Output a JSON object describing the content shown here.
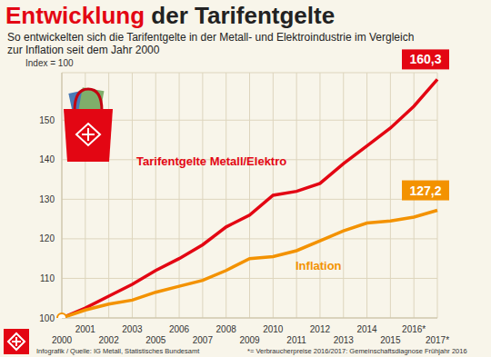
{
  "chart_data": {
    "type": "line",
    "title": "Entwicklung der Tarifentgelte",
    "subtitle": "So entwickelten sich die Tarifentgelte in der Metall- und Elektroindustrie im Vergleich zur Inflation seit dem Jahr 2000",
    "y_label": "Index = 100",
    "categories": [
      "2000",
      "2001",
      "2002",
      "2003",
      "2005",
      "2006",
      "2007",
      "2008",
      "2009",
      "2010",
      "2011",
      "2012",
      "2013",
      "2014",
      "2015",
      "2016*",
      "2017*"
    ],
    "series": [
      {
        "name": "Tarifentgelte Metall/Elektro",
        "color": "#e30613",
        "values": [
          100,
          102.5,
          105.5,
          108.5,
          112,
          115,
          118.5,
          123,
          126,
          131,
          132,
          134,
          139,
          143.5,
          148,
          153.5,
          160.3
        ],
        "value_labels": [
          null,
          null,
          null,
          null,
          null,
          null,
          null,
          null,
          null,
          null,
          null,
          null,
          null,
          null,
          null,
          null,
          "160,3"
        ]
      },
      {
        "name": "Inflation",
        "color": "#f39200",
        "values": [
          100,
          102,
          103.5,
          104.5,
          106.5,
          108,
          109.5,
          112,
          115,
          115.5,
          117,
          119.5,
          122,
          124,
          124.5,
          125.5,
          127.2
        ],
        "value_labels": [
          null,
          null,
          null,
          null,
          null,
          null,
          null,
          null,
          null,
          null,
          null,
          null,
          null,
          null,
          null,
          null,
          "127,2"
        ]
      }
    ],
    "ylim": [
      100,
      162
    ],
    "yticks": [
      100,
      110,
      120,
      130,
      140,
      150
    ],
    "grid": true,
    "data_labels": true,
    "source": "Infografik / Quelle: IG Metall, Statistisches Bundesamt",
    "note": "*= Verbraucherpreise 2016/2017: Gemeinschaftsdiagnose Frühjahr 2016"
  }
}
